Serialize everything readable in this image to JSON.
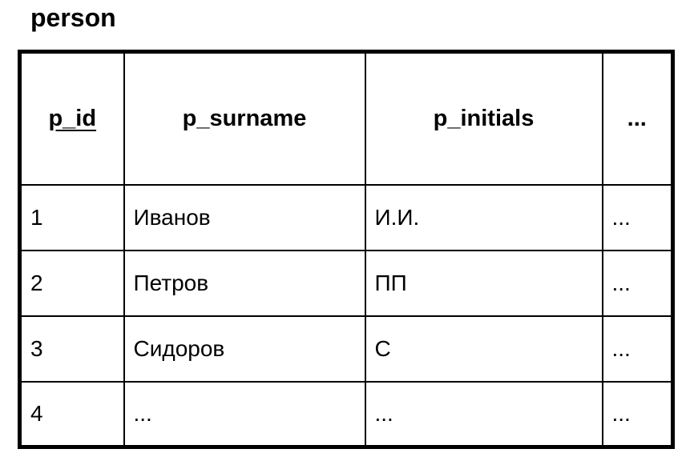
{
  "page": {
    "background_color": "#ffffff",
    "text_color": "#000000",
    "border_color": "#000000"
  },
  "table": {
    "title": "person",
    "columns": [
      {
        "label": "p_id",
        "primary_key": true
      },
      {
        "label": "p_surname",
        "primary_key": false
      },
      {
        "label": "p_initials",
        "primary_key": false
      },
      {
        "label": "...",
        "primary_key": false
      }
    ],
    "rows": [
      [
        "1",
        "Иванов",
        "И.И.",
        "..."
      ],
      [
        "2",
        "Петров",
        "ПП",
        "..."
      ],
      [
        "3",
        "Сидоров",
        "С",
        "..."
      ],
      [
        "4",
        "...",
        "...",
        "..."
      ]
    ]
  }
}
